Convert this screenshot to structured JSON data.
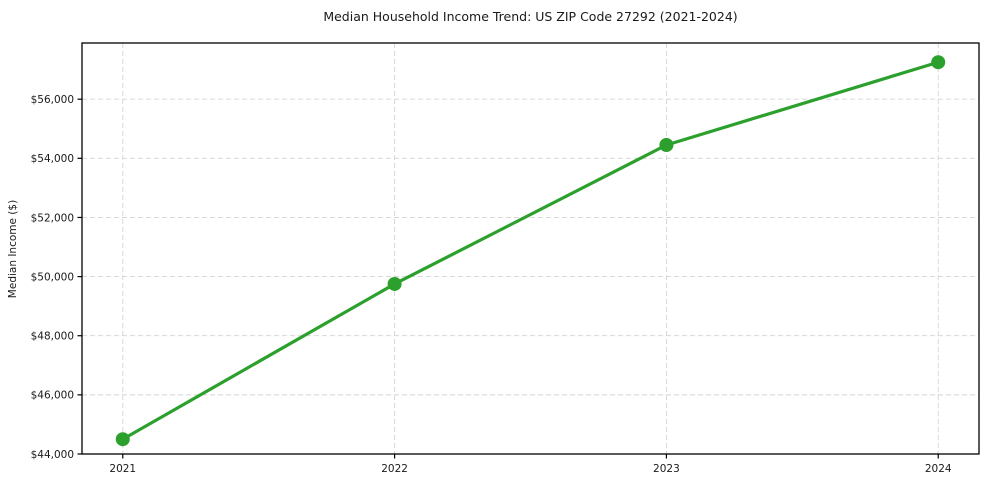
{
  "chart_data": {
    "type": "line",
    "title": "Median Household Income Trend: US ZIP Code 27292 (2021-2024)",
    "xlabel": "",
    "ylabel": "Median Income ($)",
    "categories": [
      "2021",
      "2022",
      "2023",
      "2024"
    ],
    "x": [
      2021,
      2022,
      2023,
      2024
    ],
    "series": [
      {
        "name": "Median Household Income",
        "values": [
          44500,
          49750,
          54450,
          57250
        ]
      }
    ],
    "xlim": [
      2020.85,
      2024.15
    ],
    "ylim": [
      44000,
      57900
    ],
    "xticks": [
      {
        "value": 2021,
        "label": "2021"
      },
      {
        "value": 2022,
        "label": "2022"
      },
      {
        "value": 2023,
        "label": "2023"
      },
      {
        "value": 2024,
        "label": "2024"
      }
    ],
    "yticks": [
      {
        "value": 44000,
        "label": "$44,000"
      },
      {
        "value": 46000,
        "label": "$46,000"
      },
      {
        "value": 48000,
        "label": "$48,000"
      },
      {
        "value": 50000,
        "label": "$50,000"
      },
      {
        "value": 52000,
        "label": "$52,000"
      },
      {
        "value": 54000,
        "label": "$54,000"
      },
      {
        "value": 56000,
        "label": "$56,000"
      }
    ],
    "grid": true,
    "grid_style": "dashed",
    "legend": "none",
    "marker": "circle"
  },
  "colors": {
    "line": "#2ca02c",
    "marker": "#2ca02c",
    "grid": "#d3d3d3",
    "axis": "#000000",
    "text": "#1a1a1a",
    "background": "#ffffff"
  }
}
